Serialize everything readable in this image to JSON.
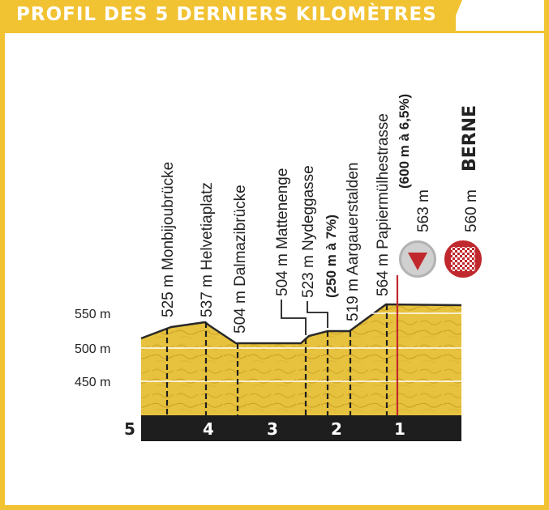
{
  "title": "PROFIL DES 5 DERNIERS KILOMÈTRES",
  "colors": {
    "accent": "#f1c232",
    "terrain": "#e5bf3c",
    "base": "#1e1e1e",
    "marker": "#c0282d",
    "flame_icon_bg": "#b0b0b0"
  },
  "y_axis": [
    {
      "label": "550 m"
    },
    {
      "label": "500 m"
    },
    {
      "label": "450 m"
    }
  ],
  "km_markers": [
    {
      "label": "5"
    },
    {
      "label": "4"
    },
    {
      "label": "3"
    },
    {
      "label": "2"
    },
    {
      "label": "1"
    }
  ],
  "waypoints": [
    {
      "label": "525 m  Monbijoubrücke"
    },
    {
      "label": "537 m  Helvetiaplatz"
    },
    {
      "label": "504 m  Dalmazibrücke"
    },
    {
      "label": "504 m  Mattenenge"
    },
    {
      "label": "523 m  Nydeggasse",
      "detail": "(250 m à 7%)"
    },
    {
      "label": "519 m  Aargauerstalden"
    },
    {
      "label": "564 m  Papiermülhestrasse",
      "detail": "(600 m à 6,5%)"
    }
  ],
  "flamme_rouge": {
    "label": "563 m",
    "icon": "triangle-down-icon"
  },
  "finish": {
    "altitude": "560 m",
    "name": "BERNE",
    "icon": "checkered-flag-icon"
  }
}
